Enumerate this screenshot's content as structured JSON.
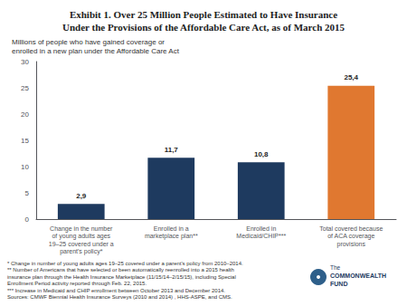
{
  "chart_data": {
    "type": "bar",
    "title": "Exhibit 1. Over 25 Million People Estimated to Have Insurance\nUnder the Provisions of the Affordable Care Act, as of March 2015",
    "subtitle": "Millions of people who have gained coverage or\nenrolled in a new plan under the Affordable Care Act",
    "categories": [
      "Change in the number\nof young adults ages\n19–25 covered under a\nparent's policy*",
      "Enrolled in a\nmarketplace plan**",
      "Enrolled in\nMedicaid/CHIP***",
      "Total covered because\nof ACA coverage\nprovisions"
    ],
    "values": [
      2.9,
      11.7,
      10.8,
      25.4
    ],
    "value_labels": [
      "2,9",
      "11,7",
      "10,8",
      "25,4"
    ],
    "data_labels": true,
    "colors": [
      "#1e3a5f",
      "#1e3a5f",
      "#1e3a5f",
      "#e07830"
    ],
    "ylim": [
      0,
      30
    ],
    "yticks": [
      0,
      5,
      10,
      15,
      20,
      25,
      30
    ],
    "grid": false,
    "footnotes": [
      "* Change in number of young adults ages 19–25 covered under a parent's policy from 2010–2014.",
      "** Number of Americans that have selected or been automatically reenrolled into a 2015 health",
      "insurance plan through the Health Insurance Marketplace (11/15/14–2/15/15), including Special",
      "Enrollment Period activity reported through Feb. 22, 2015.",
      "*** Increase in Medicaid and CHIP enrollment between October 2013 and December 2014.",
      "Sources: CMWF Biennial Health Insurance Surveys (2010 and 2014) , HHS-ASPE, and CMS."
    ],
    "annotations": [
      "The",
      "COMMONWEALTH",
      "FUND"
    ]
  }
}
